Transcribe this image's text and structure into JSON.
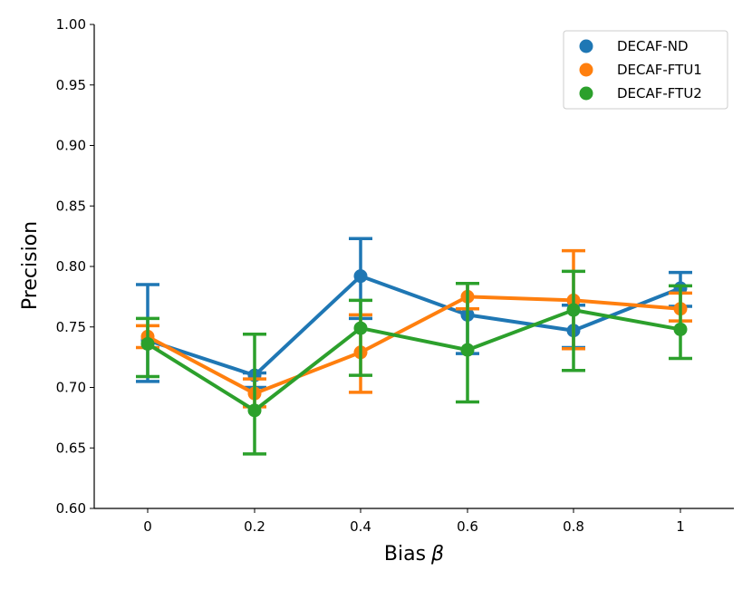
{
  "chart_data": {
    "type": "line",
    "title": "",
    "xlabel": "Bias",
    "xlabel_symbol": "β",
    "ylabel": "Precision",
    "categories": [
      "0",
      "0.2",
      "0.4",
      "0.6",
      "0.8",
      "1"
    ],
    "ylim": [
      0.6,
      1.0
    ],
    "yticks": [
      "0.60",
      "0.65",
      "0.70",
      "0.75",
      "0.80",
      "0.85",
      "0.90",
      "0.95",
      "1.00"
    ],
    "grid": false,
    "legend_position": "top-right",
    "series": [
      {
        "name": "DECAF-ND",
        "color": "#1f77b4",
        "values": [
          0.739,
          0.71,
          0.792,
          0.76,
          0.747,
          0.782
        ],
        "err_low": [
          0.705,
          0.7,
          0.757,
          0.728,
          0.733,
          0.767
        ],
        "err_high": [
          0.785,
          0.712,
          0.823,
          0.786,
          0.768,
          0.795
        ]
      },
      {
        "name": "DECAF-FTU1",
        "color": "#ff7f0e",
        "values": [
          0.742,
          0.695,
          0.729,
          0.775,
          0.772,
          0.765
        ],
        "err_low": [
          0.733,
          0.684,
          0.696,
          0.765,
          0.732,
          0.755
        ],
        "err_high": [
          0.751,
          0.707,
          0.76,
          0.786,
          0.813,
          0.778
        ]
      },
      {
        "name": "DECAF-FTU2",
        "color": "#2ca02c",
        "values": [
          0.736,
          0.681,
          0.749,
          0.731,
          0.764,
          0.748
        ],
        "err_low": [
          0.709,
          0.645,
          0.71,
          0.688,
          0.714,
          0.724
        ],
        "err_high": [
          0.757,
          0.744,
          0.772,
          0.786,
          0.796,
          0.784
        ]
      }
    ]
  }
}
